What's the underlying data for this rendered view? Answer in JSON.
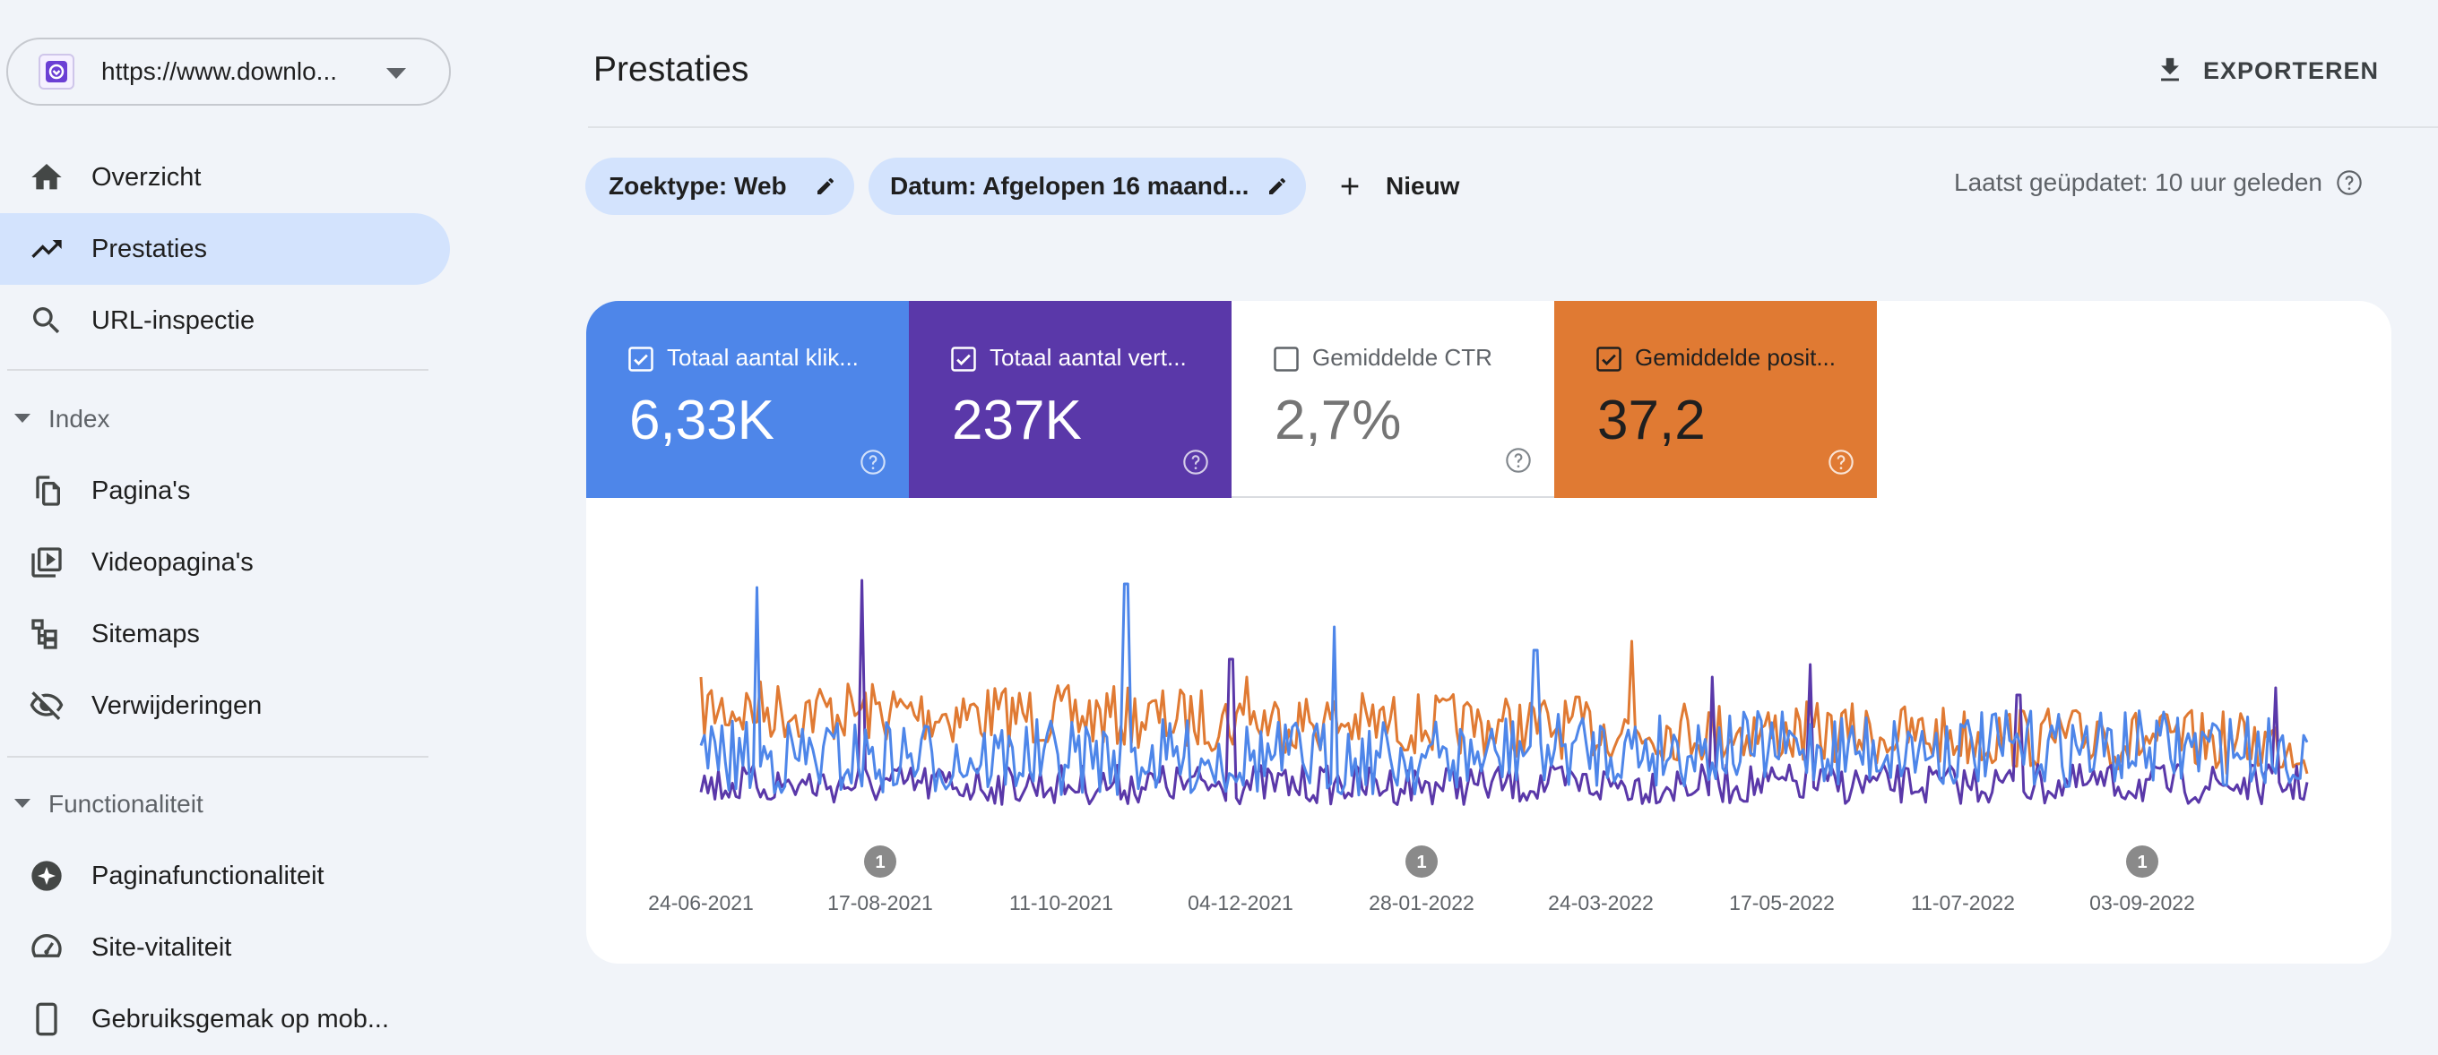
{
  "sidebar": {
    "property_url": "https://www.downlo...",
    "items": [
      {
        "label": "Overzicht",
        "icon": "home-icon"
      },
      {
        "label": "Prestaties",
        "icon": "trending-up-icon",
        "active": true
      },
      {
        "label": "URL-inspectie",
        "icon": "search-icon"
      }
    ],
    "section_index": {
      "title": "Index",
      "items": [
        {
          "label": "Pagina's",
          "icon": "pages-icon"
        },
        {
          "label": "Videopagina's",
          "icon": "video-pages-icon"
        },
        {
          "label": "Sitemaps",
          "icon": "sitemap-icon"
        },
        {
          "label": "Verwijderingen",
          "icon": "visibility-off-icon"
        }
      ]
    },
    "section_features": {
      "title": "Functionaliteit",
      "items": [
        {
          "label": "Paginafunctionaliteit",
          "icon": "page-experience-icon"
        },
        {
          "label": "Site-vitaliteit",
          "icon": "speed-gauge-icon"
        },
        {
          "label": "Gebruiksgemak op mob...",
          "icon": "mobile-icon"
        }
      ]
    }
  },
  "header": {
    "title": "Prestaties",
    "export_label": "EXPORTEREN"
  },
  "filters": {
    "search_type": "Zoektype: Web",
    "date": "Datum: Afgelopen 16 maand...",
    "new_label": "Nieuw",
    "last_updated": "Laatst geüpdatet: 10 uur geleden"
  },
  "metrics": [
    {
      "label": "Totaal aantal klik...",
      "value": "6,33K",
      "checked": true,
      "color": "#4e86e9"
    },
    {
      "label": "Totaal aantal vert...",
      "value": "237K",
      "checked": true,
      "color": "#5a38a9"
    },
    {
      "label": "Gemiddelde CTR",
      "value": "2,7%",
      "checked": false,
      "color": "#ffffff"
    },
    {
      "label": "Gemiddelde posit...",
      "value": "37,2",
      "checked": true,
      "color": "#e07a33"
    }
  ],
  "chart_data": {
    "type": "line",
    "x_tick_labels": [
      "24-06-2021",
      "17-08-2021",
      "11-10-2021",
      "04-12-2021",
      "28-01-2022",
      "24-03-2022",
      "17-05-2022",
      "11-07-2022",
      "03-09-2022"
    ],
    "annotations": [
      {
        "date": "17-08-2021",
        "label": "1"
      },
      {
        "date": "28-01-2022",
        "label": "1"
      },
      {
        "date": "03-09-2022",
        "label": "1"
      }
    ],
    "series_colors": {
      "clicks": "#4e86e9",
      "impressions": "#5a38a9",
      "position": "#e07a33"
    },
    "y_axes": "hidden",
    "grid": false
  }
}
